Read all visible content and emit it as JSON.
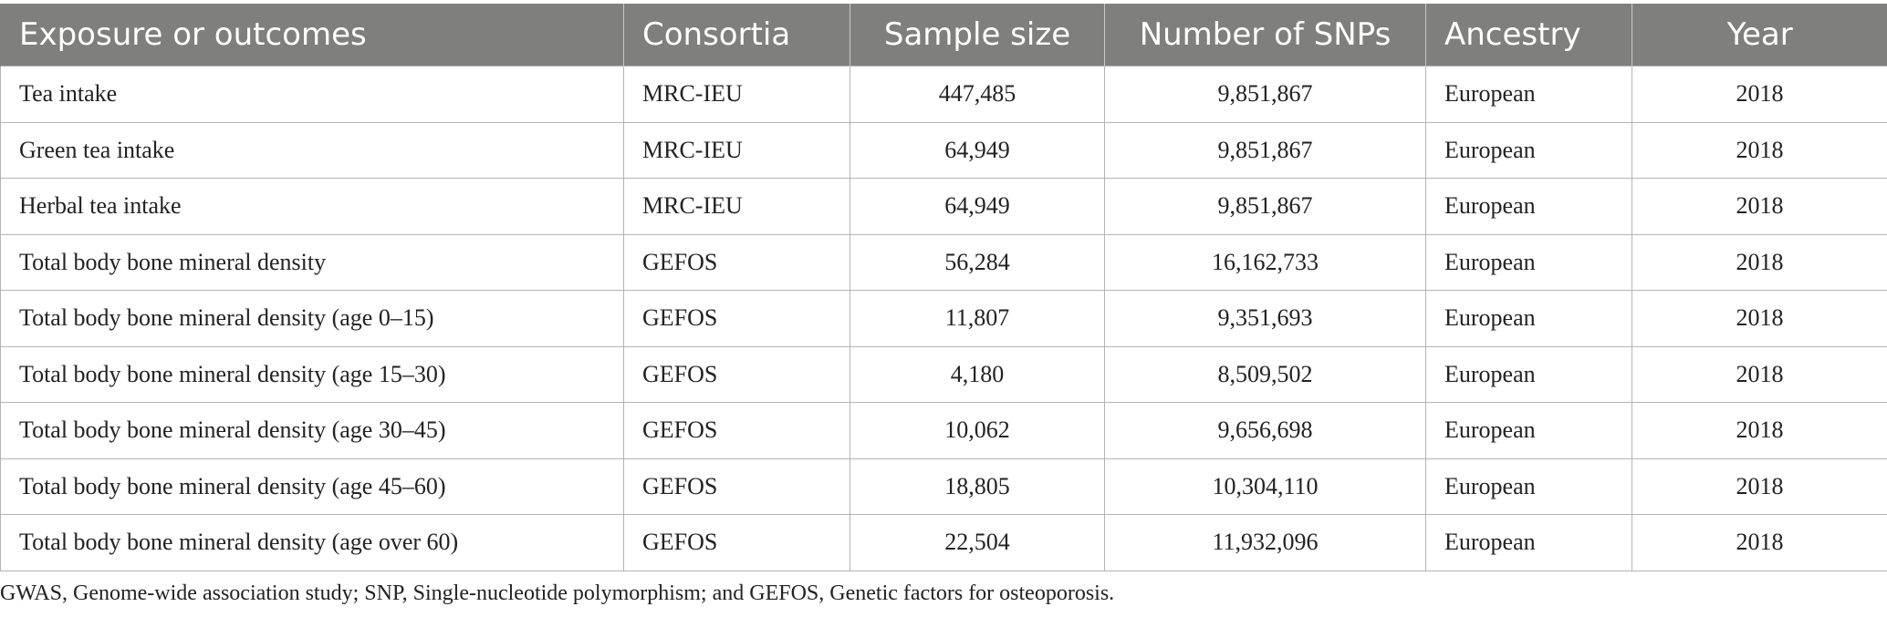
{
  "table": {
    "headers": [
      "Exposure or outcomes",
      "Consortia",
      "Sample size",
      "Number of SNPs",
      "Ancestry",
      "Year"
    ],
    "rows": [
      [
        "Tea intake",
        "MRC-IEU",
        "447,485",
        "9,851,867",
        "European",
        "2018"
      ],
      [
        "Green tea intake",
        "MRC-IEU",
        "64,949",
        "9,851,867",
        "European",
        "2018"
      ],
      [
        "Herbal tea intake",
        "MRC-IEU",
        "64,949",
        "9,851,867",
        "European",
        "2018"
      ],
      [
        "Total body bone mineral density",
        "GEFOS",
        "56,284",
        "16,162,733",
        "European",
        "2018"
      ],
      [
        "Total body bone mineral density (age 0–15)",
        "GEFOS",
        "11,807",
        "9,351,693",
        "European",
        "2018"
      ],
      [
        "Total body bone mineral density (age 15–30)",
        "GEFOS",
        "4,180",
        "8,509,502",
        "European",
        "2018"
      ],
      [
        "Total body bone mineral density (age 30–45)",
        "GEFOS",
        "10,062",
        "9,656,698",
        "European",
        "2018"
      ],
      [
        "Total body bone mineral density (age 45–60)",
        "GEFOS",
        "18,805",
        "10,304,110",
        "European",
        "2018"
      ],
      [
        "Total body bone mineral density (age over 60)",
        "GEFOS",
        "22,504",
        "11,932,096",
        "European",
        "2018"
      ]
    ]
  },
  "footnote": "GWAS, Genome-wide association study; SNP, Single-nucleotide polymorphism; and GEFOS, Genetic factors for osteoporosis.",
  "colors": {
    "header_bg": "#7f7f7e",
    "header_text": "#ffffff",
    "grid": "#b4b4b4"
  }
}
